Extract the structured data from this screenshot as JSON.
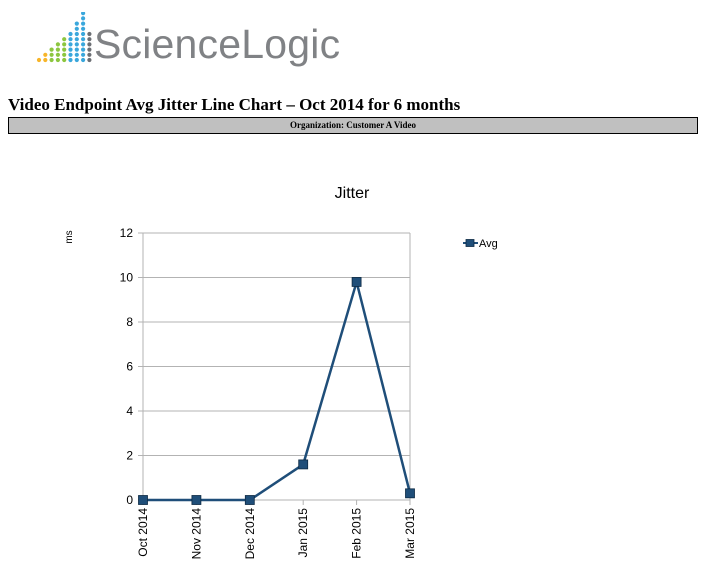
{
  "brand": {
    "name": "ScienceLogic",
    "colors": [
      "#f7b52a",
      "#8cc63f",
      "#3aa7dc",
      "#6c6f74"
    ]
  },
  "report": {
    "title": "Video Endpoint Avg Jitter Line Chart – Oct 2014 for 6 months",
    "organization": "Organization: Customer A Video"
  },
  "chart_data": {
    "type": "line",
    "title": "Jitter",
    "ylabel": "ms",
    "xlabel": "",
    "categories": [
      "Oct 2014",
      "Nov 2014",
      "Dec 2014",
      "Jan 2015",
      "Feb 2015",
      "Mar 2015"
    ],
    "series": [
      {
        "name": "Avg",
        "values": [
          0,
          0,
          0,
          1.6,
          9.8,
          0.3
        ],
        "color": "#1f4e79"
      }
    ],
    "ylim": [
      0,
      12
    ],
    "yticks": [
      0,
      2,
      4,
      6,
      8,
      10,
      12
    ],
    "grid": true,
    "legend": "right"
  }
}
